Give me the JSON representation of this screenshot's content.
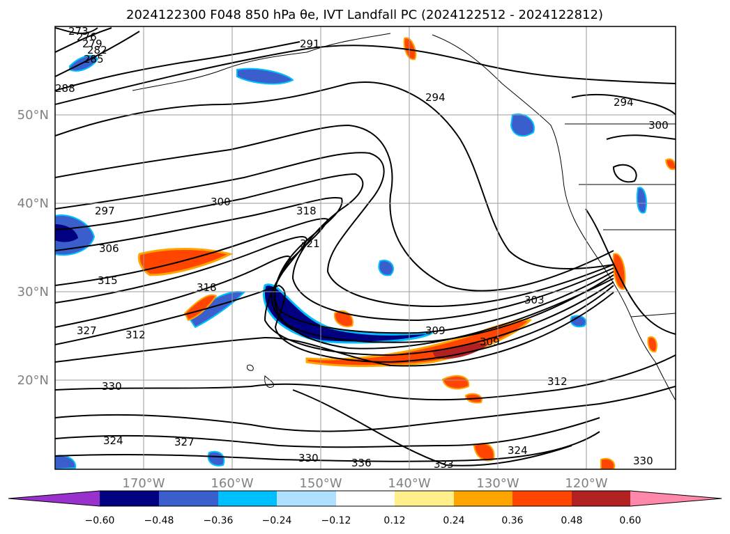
{
  "title": "2024122300 F048 850 hPa θe, IVT Landfall PC (2024122512 - 2024122812)",
  "map": {
    "lat_labels": [
      "50°N",
      "40°N",
      "30°N",
      "20°N"
    ],
    "lon_labels": [
      "170°W",
      "160°W",
      "150°W",
      "140°W",
      "130°W",
      "120°W"
    ],
    "contour_labels": [
      "273",
      "276",
      "279",
      "282",
      "285",
      "288",
      "291",
      "294",
      "294",
      "297",
      "300",
      "300",
      "306",
      "309",
      "309",
      "312",
      "312",
      "315",
      "318",
      "318",
      "321",
      "324",
      "324",
      "327",
      "327",
      "330",
      "330",
      "330",
      "333",
      "336",
      "303"
    ],
    "shading_colors": {
      "neg_strong": "#000080",
      "neg_mid": "#3a5fcd",
      "neg_weak": "#00bfff",
      "neg_faint": "#b0e0ff",
      "pos_faint": "#fff08c",
      "pos_weak": "#ffa500",
      "pos_mid": "#ff4500",
      "pos_strong": "#b22222"
    }
  },
  "colorbar": {
    "ticks": [
      "−0.60",
      "−0.48",
      "−0.36",
      "−0.24",
      "−0.12",
      "0.12",
      "0.24",
      "0.36",
      "0.48",
      "0.60"
    ],
    "colors": [
      "#9932cc",
      "#000080",
      "#3a5fcd",
      "#00bfff",
      "#b0e0ff",
      "#ffffff",
      "#fff08c",
      "#ffa500",
      "#ff4500",
      "#b22222",
      "#ff88aa"
    ]
  }
}
